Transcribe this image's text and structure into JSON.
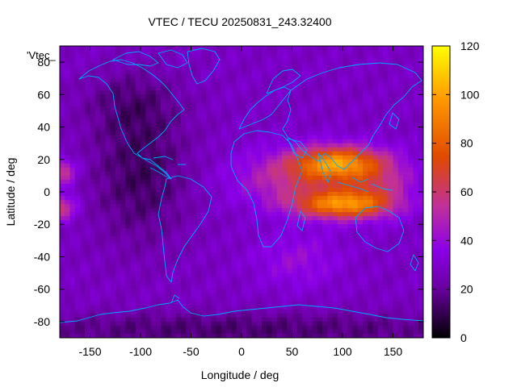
{
  "title": "VTEC / TECU 20250831_243.32400",
  "map_label": "'Vtec_",
  "xlabel": "Longitude / deg",
  "ylabel": "Latitude / deg",
  "colorbar": {
    "min": 0,
    "max": 120,
    "ticks": [
      "0",
      "20",
      "40",
      "60",
      "80",
      "100",
      "120"
    ],
    "palette": [
      "#000000",
      "#6a00a0",
      "#8a00e8",
      "#c0309a",
      "#e04a00",
      "#ff9a00",
      "#ffff00"
    ]
  },
  "chart_data": {
    "type": "heatmap",
    "title": "VTEC / TECU 20250831_243.32400",
    "xlabel": "Longitude / deg",
    "ylabel": "Latitude / deg",
    "xlim": [
      -180,
      180
    ],
    "ylim": [
      -90,
      90
    ],
    "x_ticks": [
      "-150",
      "-100",
      "-50",
      "0",
      "50",
      "100",
      "150"
    ],
    "x_tick_values": [
      -150,
      -100,
      -50,
      0,
      50,
      100,
      150
    ],
    "y_ticks": [
      "80",
      "60",
      "40",
      "20",
      "0",
      "-20",
      "-40",
      "-60",
      "-80"
    ],
    "y_tick_values": [
      80,
      60,
      40,
      20,
      0,
      -20,
      -40,
      -60,
      -80
    ],
    "zlim": [
      0,
      120
    ],
    "background_level": 28,
    "features": [
      {
        "name": "crest-north",
        "lon": 95,
        "lat": 18,
        "value": 90
      },
      {
        "name": "crest-south",
        "lon": 95,
        "lat": -8,
        "value": 92
      },
      {
        "name": "equatorial-band-east",
        "lon": 60,
        "lat": 8,
        "value": 62
      },
      {
        "name": "pacific-edge-north",
        "lon": -170,
        "lat": 12,
        "value": 58
      },
      {
        "name": "pacific-edge-south",
        "lon": -175,
        "lat": -10,
        "value": 58
      },
      {
        "name": "southern-indian",
        "lon": 55,
        "lat": -40,
        "value": 40
      },
      {
        "name": "americas-trough",
        "lon": -100,
        "lat": 10,
        "value": 12
      }
    ]
  }
}
